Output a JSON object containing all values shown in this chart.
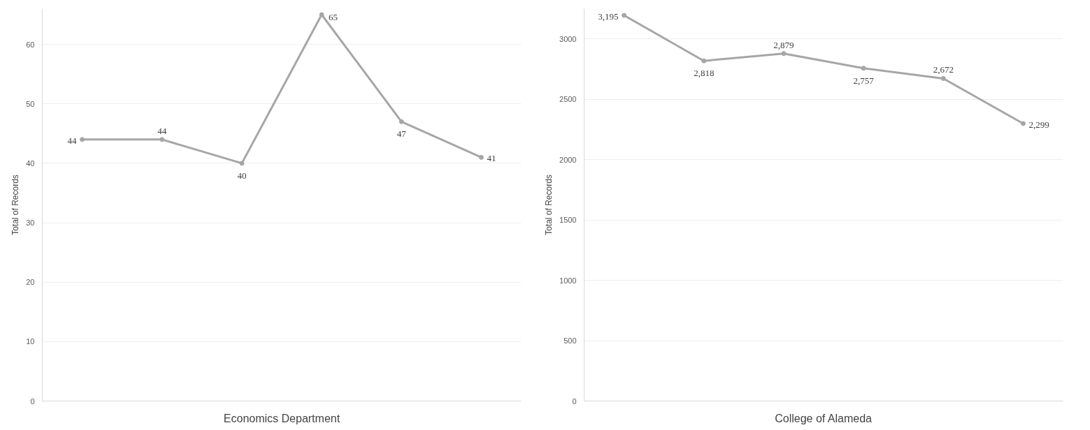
{
  "chart_data": [
    {
      "type": "line",
      "xlabel": "Economics Department",
      "ylabel": "Total of Records",
      "categories": [
        null,
        null,
        null,
        null,
        null,
        null
      ],
      "values": [
        44,
        44,
        40,
        65,
        47,
        41
      ],
      "color": "#a6a6a6",
      "ylim": [
        0,
        66
      ],
      "yticks": [
        0,
        10,
        20,
        30,
        40,
        50,
        60
      ],
      "grid": "y",
      "marker": "circle",
      "data_labels": true
    },
    {
      "type": "line",
      "xlabel": "College of Alameda",
      "ylabel": "Total of Records",
      "categories": [
        null,
        null,
        null,
        null,
        null,
        null
      ],
      "values": [
        3195,
        2818,
        2879,
        2757,
        2672,
        2299
      ],
      "color": "#a6a6a6",
      "ylim": [
        0,
        3250
      ],
      "yticks": [
        0,
        500,
        1000,
        1500,
        2000,
        2500,
        3000
      ],
      "grid": "y",
      "marker": "circle",
      "value_labels": [
        "3,195",
        "2,818",
        "2,879",
        "2,757",
        "2,672",
        "2,299"
      ]
    }
  ]
}
